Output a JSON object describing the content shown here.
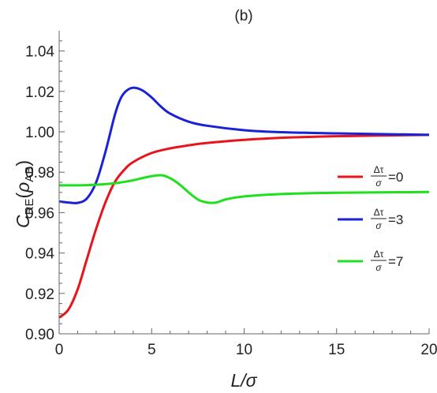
{
  "chart_data": {
    "type": "line",
    "title": "(b)",
    "xlabel": "L/σ",
    "ylabel": {
      "main": "C",
      "sub": "RE",
      "open": "(",
      "rho": "ρ",
      "rho_sub": "AB",
      "close": ")"
    },
    "xlim": [
      0,
      20
    ],
    "ylim": [
      0.9,
      1.05
    ],
    "x_ticks": [
      0,
      5,
      10,
      15,
      20
    ],
    "x_tick_labels": [
      "0",
      "5",
      "10",
      "15",
      "20"
    ],
    "y_ticks": [
      0.9,
      0.92,
      0.94,
      0.96,
      0.98,
      1.0,
      1.02,
      1.04
    ],
    "y_tick_labels": [
      "0.90",
      "0.92",
      "0.94",
      "0.96",
      "0.98",
      "1.00",
      "1.02",
      "1.04"
    ],
    "grid": false,
    "legend_position": "right",
    "series": [
      {
        "name": "Δτ/σ=0",
        "legend": {
          "num": "Δτ",
          "den": "σ",
          "value": "=0"
        },
        "color": "#e8141c",
        "x": [
          0,
          0.5,
          1.0,
          1.5,
          2.0,
          2.5,
          3.0,
          3.5,
          4.0,
          5.0,
          6.0,
          7.0,
          8.0,
          10.0,
          12.0,
          15.0,
          20.0
        ],
        "y": [
          0.908,
          0.912,
          0.922,
          0.937,
          0.952,
          0.965,
          0.975,
          0.981,
          0.985,
          0.9895,
          0.9918,
          0.9933,
          0.9945,
          0.996,
          0.997,
          0.9978,
          0.9985
        ]
      },
      {
        "name": "Δτ/σ=3",
        "legend": {
          "num": "Δτ",
          "den": "σ",
          "value": "=3"
        },
        "color": "#1a22d6",
        "x": [
          0,
          0.5,
          1.0,
          1.5,
          2.0,
          2.5,
          3.0,
          3.3,
          3.6,
          4.0,
          4.5,
          5.0,
          5.5,
          6.0,
          7.0,
          8.0,
          10.0,
          12.0,
          15.0,
          20.0
        ],
        "y": [
          0.9655,
          0.965,
          0.9648,
          0.967,
          0.975,
          0.99,
          1.008,
          1.016,
          1.02,
          1.0218,
          1.0205,
          1.017,
          1.0125,
          1.009,
          1.005,
          1.003,
          1.0008,
          0.9998,
          0.9992,
          0.9985
        ]
      },
      {
        "name": "Δτ/σ=7",
        "legend": {
          "num": "Δτ",
          "den": "σ",
          "value": "=7"
        },
        "color": "#1ee01e",
        "x": [
          0,
          1.0,
          2.0,
          3.0,
          4.0,
          4.7,
          5.5,
          6.0,
          6.5,
          7.0,
          7.5,
          8.0,
          8.5,
          9.0,
          10.0,
          12.0,
          15.0,
          20.0
        ],
        "y": [
          0.9735,
          0.9735,
          0.9738,
          0.9745,
          0.976,
          0.9775,
          0.9785,
          0.977,
          0.974,
          0.97,
          0.9665,
          0.965,
          0.965,
          0.9665,
          0.968,
          0.9692,
          0.9698,
          0.9702
        ]
      }
    ]
  }
}
